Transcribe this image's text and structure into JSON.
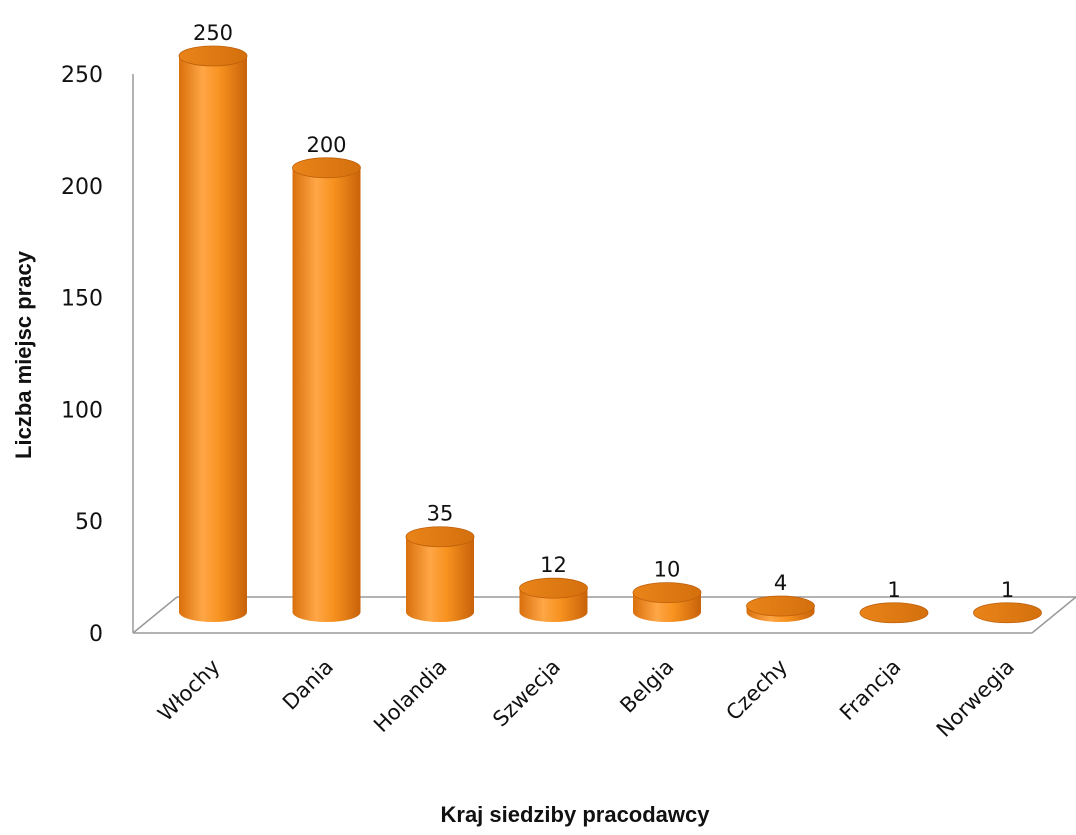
{
  "chart_data": {
    "type": "bar",
    "style": "3d-cylinder",
    "categories": [
      "Włochy",
      "Dania",
      "Holandia",
      "Szwecja",
      "Belgia",
      "Czechy",
      "Francja",
      "Norwegia"
    ],
    "values": [
      250,
      200,
      35,
      12,
      10,
      4,
      1,
      1
    ],
    "data_labels": [
      "250",
      "200",
      "35",
      "12",
      "10",
      "4",
      "1",
      "1"
    ],
    "xlabel": "Kraj siedziby pracodawcy",
    "ylabel": "Liczba miejsc pracy",
    "ylim": [
      0,
      250
    ],
    "yticks": [
      "0",
      "50",
      "100",
      "150",
      "200",
      "250"
    ],
    "grid": false,
    "legend": false,
    "bar_color": "#f08c1c"
  }
}
